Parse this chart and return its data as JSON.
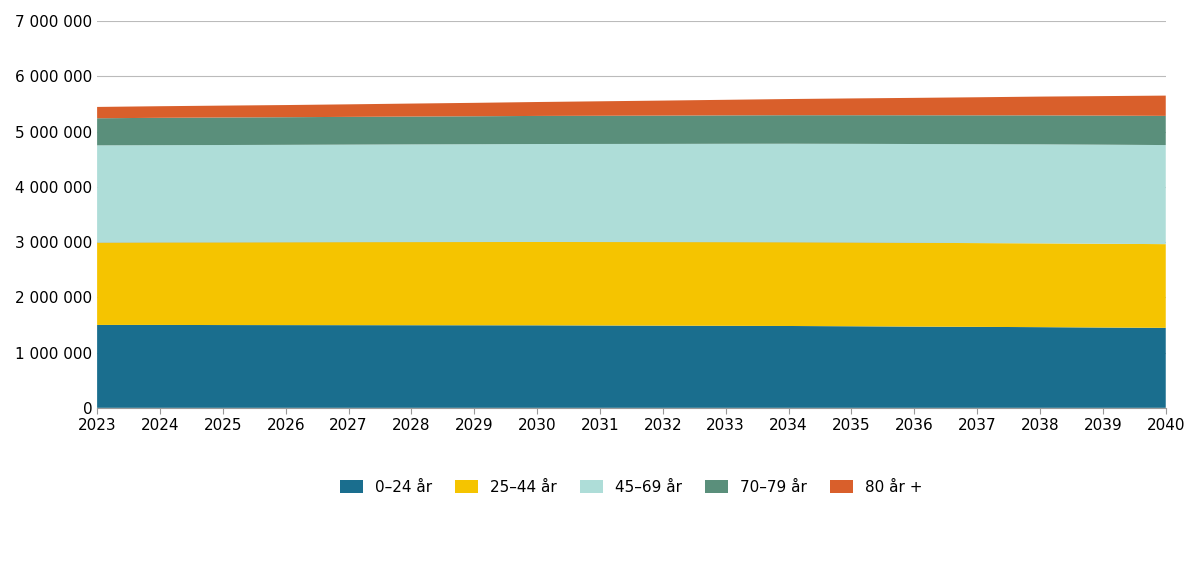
{
  "years": [
    2023,
    2024,
    2025,
    2026,
    2027,
    2028,
    2029,
    2030,
    2031,
    2032,
    2033,
    2034,
    2035,
    2036,
    2037,
    2038,
    2039,
    2040
  ],
  "age_0_24": [
    1500000,
    1500000,
    1498000,
    1497000,
    1496000,
    1495000,
    1494000,
    1493000,
    1490000,
    1487000,
    1484000,
    1481000,
    1476000,
    1470000,
    1465000,
    1460000,
    1453000,
    1447000
  ],
  "age_25_44": [
    1490000,
    1493000,
    1496000,
    1499000,
    1502000,
    1504000,
    1506000,
    1508000,
    1510000,
    1512000,
    1514000,
    1515000,
    1516000,
    1516000,
    1516000,
    1516000,
    1516000,
    1515000
  ],
  "age_45_69": [
    1760000,
    1760000,
    1762000,
    1763000,
    1765000,
    1768000,
    1770000,
    1773000,
    1775000,
    1777000,
    1780000,
    1783000,
    1785000,
    1788000,
    1790000,
    1792000,
    1793000,
    1793000
  ],
  "age_70_79": [
    490000,
    495000,
    498000,
    500000,
    502000,
    504000,
    506000,
    508000,
    510000,
    512000,
    514000,
    516000,
    518000,
    520000,
    522000,
    524000,
    526000,
    528000
  ],
  "age_80_plus": [
    205000,
    210000,
    215000,
    220000,
    227000,
    235000,
    243000,
    252000,
    262000,
    272000,
    282000,
    293000,
    304000,
    315000,
    327000,
    340000,
    353000,
    367000
  ],
  "colors": {
    "age_0_24": "#1a6e8e",
    "age_25_44": "#f5c400",
    "age_45_69": "#aeddd8",
    "age_70_79": "#5a8f7b",
    "age_80_plus": "#d95f2b"
  },
  "labels": [
    "0–24 år",
    "25–44 år",
    "45–69 år",
    "70–79 år",
    "80 år +"
  ],
  "ylim": [
    0,
    7000000
  ],
  "yticks": [
    0,
    1000000,
    2000000,
    3000000,
    4000000,
    5000000,
    6000000,
    7000000
  ],
  "ytick_labels": [
    "0",
    "1 000 000",
    "2 000 000",
    "3 000 000",
    "4 000 000",
    "5 000 000",
    "6 000 000",
    "7 000 000"
  ],
  "background_color": "#ffffff",
  "grid_color": "#bbbbbb",
  "font_size_tick": 11,
  "font_size_legend": 11
}
